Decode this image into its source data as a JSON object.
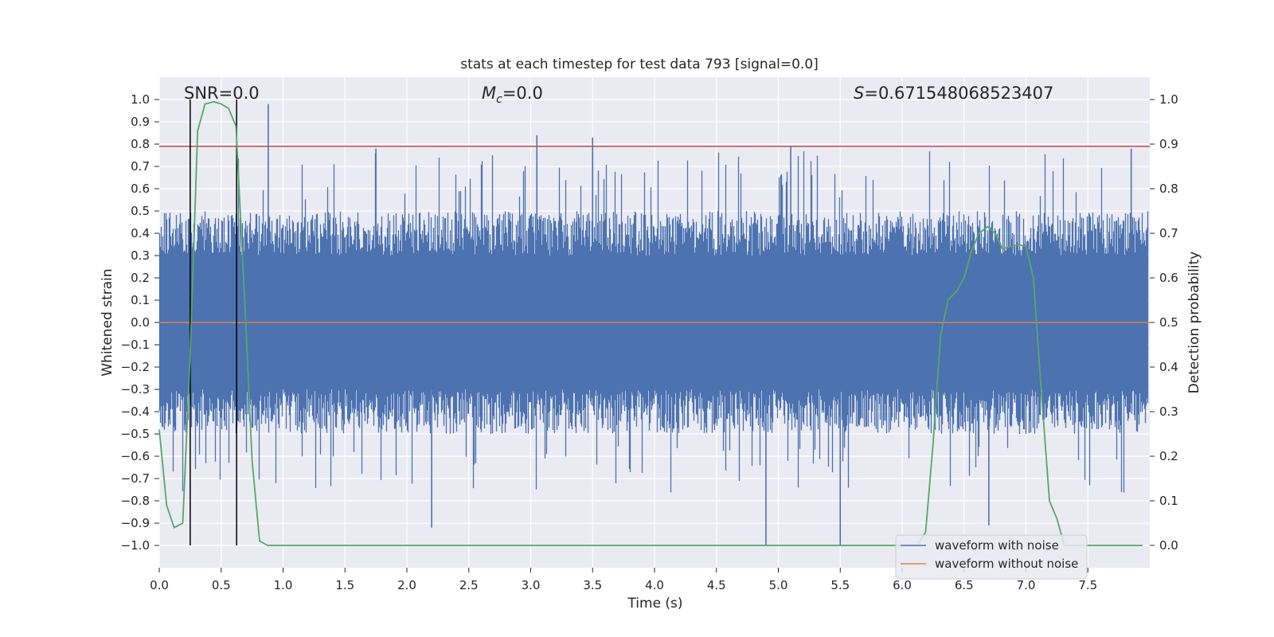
{
  "chart_data": {
    "type": "line",
    "title": "stats at each timestep for test data 793 [signal=0.0]",
    "xlabel": "Time (s)",
    "ylabel_left": "Whitened strain",
    "ylabel_right": "Detection probability",
    "xlim": [
      0.0,
      8.0
    ],
    "ylim_left": [
      -1.1,
      1.1
    ],
    "ylim_right": [
      -0.05,
      1.05
    ],
    "xticks": [
      "0.0",
      "0.5",
      "1.0",
      "1.5",
      "2.0",
      "2.5",
      "3.0",
      "3.5",
      "4.0",
      "4.5",
      "5.0",
      "5.5",
      "6.0",
      "6.5",
      "7.0",
      "7.5"
    ],
    "yticks_left": [
      "1.0",
      "0.9",
      "0.8",
      "0.7",
      "0.6",
      "0.5",
      "0.4",
      "0.3",
      "0.2",
      "0.1",
      "0.0",
      "−0.1",
      "−0.2",
      "−0.3",
      "−0.4",
      "−0.5",
      "−0.6",
      "−0.7",
      "−0.8",
      "−0.9",
      "−1.0"
    ],
    "yticks_right": [
      "1.0",
      "0.9",
      "0.8",
      "0.7",
      "0.6",
      "0.5",
      "0.4",
      "0.3",
      "0.2",
      "0.1",
      "0.0"
    ],
    "annotations": {
      "snr_label": "SNR=0.0",
      "mc_symbol": "M",
      "mc_subscript": "c",
      "mc_value": "=0.0",
      "s_symbol": "S",
      "s_value": "=0.671548068523407"
    },
    "legend": {
      "position": "lower-right",
      "entries": [
        {
          "label": "waveform with noise",
          "color": "#4c72b0"
        },
        {
          "label": "waveform without noise",
          "color": "#dd8452"
        }
      ]
    },
    "colors": {
      "noise": "#4c72b0",
      "clean": "#dd8452",
      "probability": "#55a868",
      "threshold": "#c44e52",
      "marker": "#000000",
      "background": "#eaeaf2"
    },
    "threshold_value": 0.79,
    "vertical_markers_time": [
      0.25,
      0.625
    ],
    "series": [
      {
        "name": "Detection probability",
        "axis": "right",
        "x": [
          0.0,
          0.06,
          0.12,
          0.19,
          0.25,
          0.31,
          0.37,
          0.44,
          0.5,
          0.56,
          0.62,
          0.69,
          0.75,
          0.81,
          0.875,
          0.94,
          6.0,
          6.12,
          6.19,
          6.25,
          6.31,
          6.37,
          6.44,
          6.5,
          6.56,
          6.62,
          6.69,
          6.75,
          6.81,
          6.87,
          6.94,
          7.0,
          7.06,
          7.12,
          7.19,
          7.25,
          7.31,
          7.37,
          7.44,
          7.5,
          7.94
        ],
        "y": [
          0.26,
          0.09,
          0.04,
          0.05,
          0.43,
          0.93,
          0.99,
          0.995,
          0.99,
          0.98,
          0.94,
          0.55,
          0.19,
          0.01,
          0.0,
          0.0,
          0.0,
          0.0,
          0.03,
          0.23,
          0.47,
          0.55,
          0.57,
          0.6,
          0.66,
          0.7,
          0.715,
          0.7,
          0.665,
          0.67,
          0.675,
          0.67,
          0.6,
          0.36,
          0.1,
          0.06,
          0.0,
          0.0,
          0.0,
          0.0,
          0.0
        ]
      },
      {
        "name": "waveform without noise",
        "axis": "left",
        "x": [
          0.0,
          8.0
        ],
        "y": [
          0.0,
          0.0
        ]
      },
      {
        "name": "waveform with noise",
        "axis": "left",
        "description": "dense whitened noise samples filling roughly -0.45 to 0.45 with spikes up to about 0.98 and down to -1.0",
        "x": [
          0.88,
          1.75,
          2.2,
          3.05,
          3.5,
          4.9,
          5.1,
          5.5,
          6.7,
          7.85
        ],
        "y": [
          0.98,
          0.78,
          -0.92,
          0.84,
          0.83,
          -1.0,
          0.79,
          -1.0,
          -0.91,
          0.78
        ]
      }
    ]
  }
}
